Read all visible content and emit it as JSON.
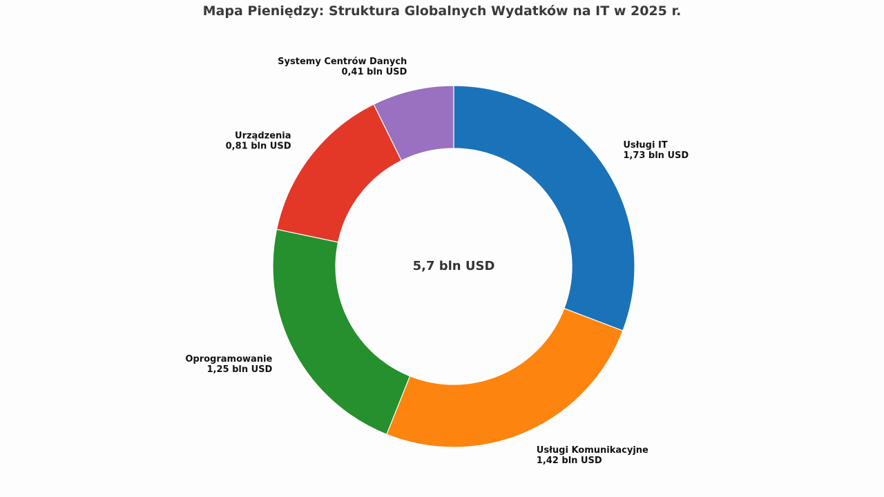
{
  "chart_data": {
    "type": "pie",
    "style": "donut",
    "title": "Mapa Pieniędzy: Struktura Globalnych Wydatków na IT w 2025 r.",
    "center_text": "5,7 bln USD",
    "start_angle_deg": 90,
    "direction": "clockwise",
    "slices": [
      {
        "name": "Usługi IT",
        "value": 1.73,
        "value_label": "1,73 bln USD",
        "color": "#1a72b9"
      },
      {
        "name": "Usługi Komunikacyjne",
        "value": 1.42,
        "value_label": "1,42 bln USD",
        "color": "#fd840e"
      },
      {
        "name": "Oprogramowanie",
        "value": 1.25,
        "value_label": "1,25 bln USD",
        "color": "#268f2e"
      },
      {
        "name": "Urządzenia",
        "value": 0.81,
        "value_label": "0,81 bln USD",
        "color": "#e33828"
      },
      {
        "name": "Systemy Centrów Danych",
        "value": 0.41,
        "value_label": "0,41 bln USD",
        "color": "#9a70c0"
      }
    ],
    "legend": false
  }
}
